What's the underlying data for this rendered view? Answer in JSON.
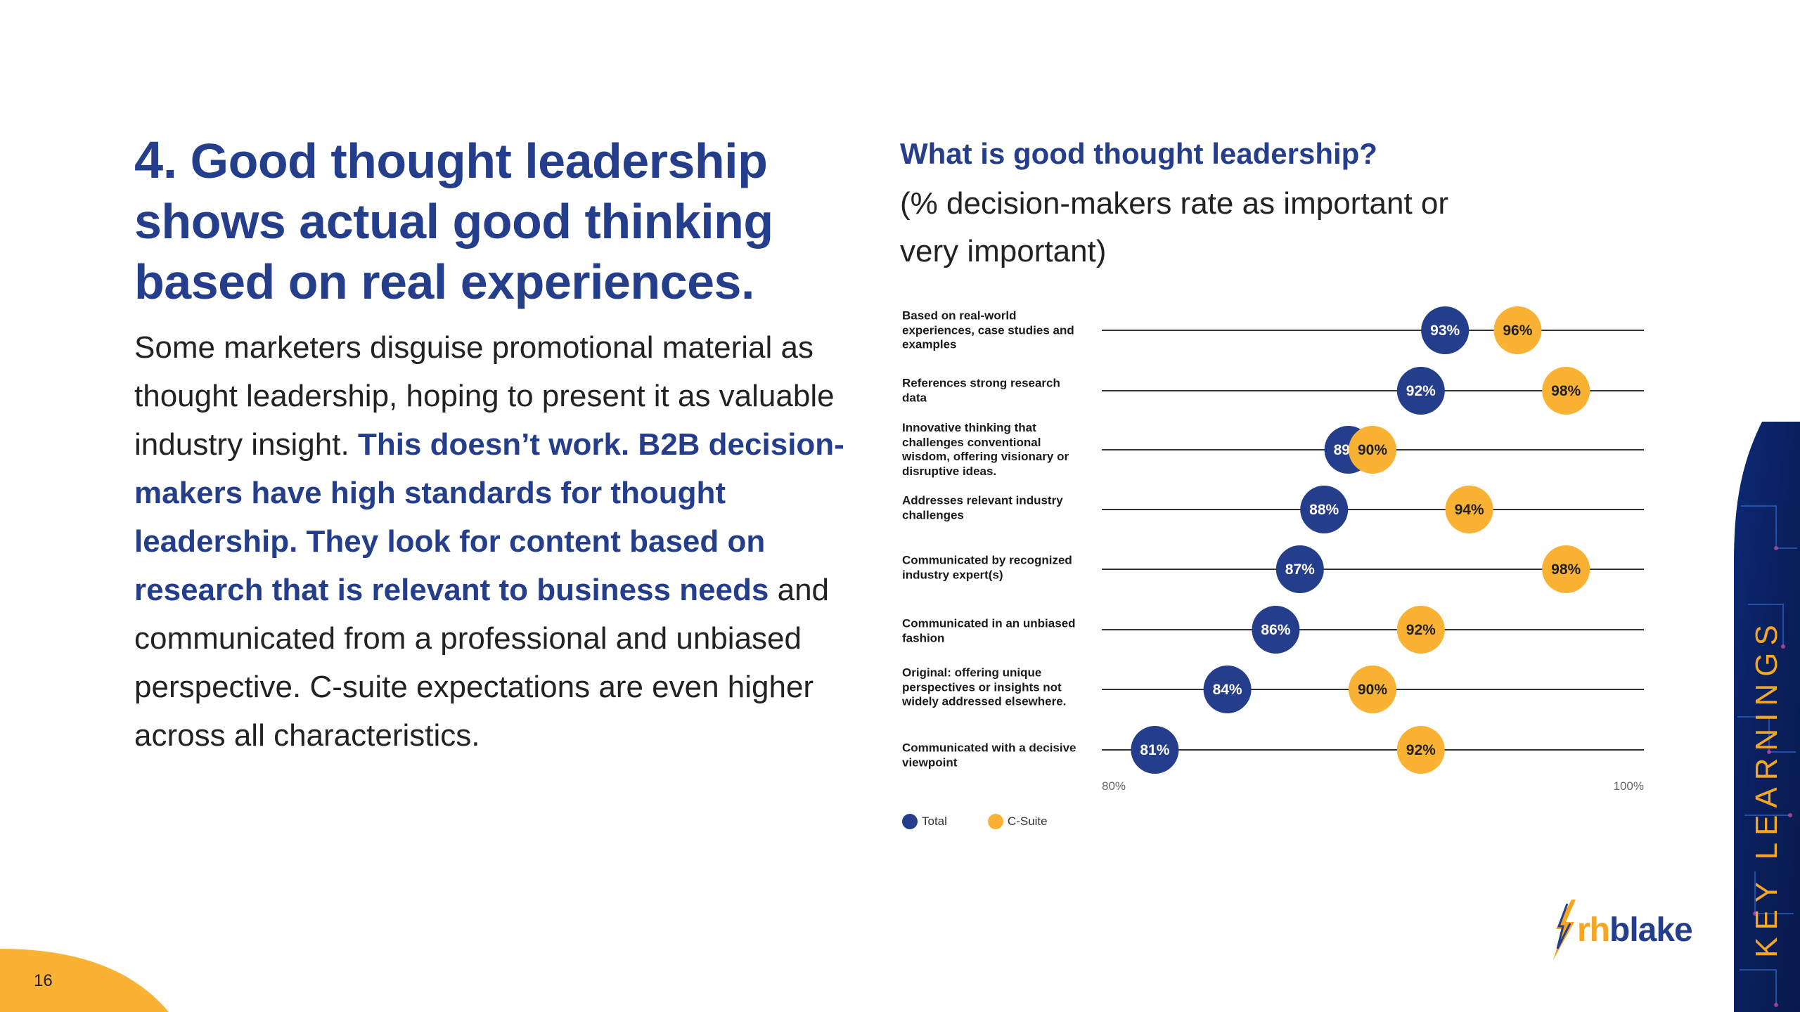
{
  "headline": {
    "number": "4.",
    "lines": [
      "Good thought leadership",
      "shows actual good thinking",
      "based on real experiences."
    ]
  },
  "body": {
    "part1": "Some marketers disguise promotional material as thought leadership, hoping to present it as valuable industry insight. ",
    "emphasis": "This doesn’t work. B2B decision-makers have high standards for thought leadership. They look for content based on research that is relevant to business needs",
    "part2": " and communicated from a professional and unbiased perspective. C-suite expectations are even higher across all characteristics."
  },
  "chart_title": "What is good thought leadership?",
  "chart_subtitle": "(% decision-makers rate as important or very important)",
  "chart_data": {
    "type": "scatter",
    "title": "What is good thought leadership?",
    "subtitle": "(% decision-makers rate as important or very important)",
    "categories": [
      "Based on real-world experiences, case studies and examples",
      "References strong research data",
      "Innovative thinking that challenges conventional wisdom, offering visionary or disruptive ideas.",
      "Addresses relevant industry challenges",
      "Communicated by recognized industry expert(s)",
      "Communicated in an unbiased fashion",
      "Original: offering unique perspectives or insights not widely addressed elsewhere.",
      "Communicated with a decisive viewpoint"
    ],
    "series": [
      {
        "name": "Total",
        "color": "#253e8c",
        "values": [
          93,
          92,
          89,
          88,
          87,
          86,
          84,
          81
        ]
      },
      {
        "name": "C-Suite",
        "color": "#f9b233",
        "values": [
          96,
          98,
          90,
          94,
          98,
          92,
          90,
          92
        ]
      }
    ],
    "xlim": [
      80,
      100
    ],
    "tick_labels": [
      "80%",
      "100%"
    ],
    "legend_position": "bottom-left",
    "grid": false
  },
  "legend": {
    "total": "Total",
    "csuite": "C-Suite"
  },
  "banner_text": "KEY LEARNINGS",
  "logo": {
    "prefix": "rh",
    "name": "blake"
  },
  "page_number": "16",
  "colors": {
    "navy": "#253e8c",
    "orange": "#f9b233",
    "banner": "#0b2260",
    "corner": "#f9b233"
  }
}
